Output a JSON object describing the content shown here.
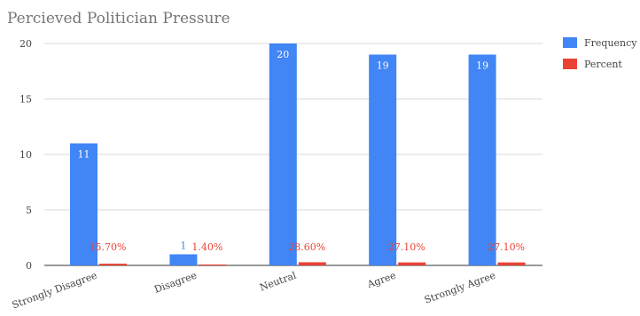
{
  "chart_data": {
    "type": "bar",
    "title": "Percieved Politician Pressure",
    "xlabel": "",
    "ylabel": "",
    "ylim": [
      0,
      20
    ],
    "yticks": [
      "0",
      "5",
      "10",
      "15",
      "20"
    ],
    "grid": true,
    "legend_position": "right",
    "categories": [
      "Strongly Disagree",
      "Disagree",
      "Neutral",
      "Agree",
      "Strongly Agree"
    ],
    "series": [
      {
        "name": "Frequency",
        "color": "#4285F4",
        "values": [
          11,
          1,
          20,
          19,
          19
        ],
        "labels": [
          "11",
          "1",
          "20",
          "19",
          "19"
        ]
      },
      {
        "name": "Percent",
        "color": "#EA4335",
        "values": [
          0.157,
          0.014,
          0.286,
          0.271,
          0.271
        ],
        "labels": [
          "15.70%",
          "1.40%",
          "28.60%",
          "27.10%",
          "27.10%"
        ]
      }
    ]
  }
}
